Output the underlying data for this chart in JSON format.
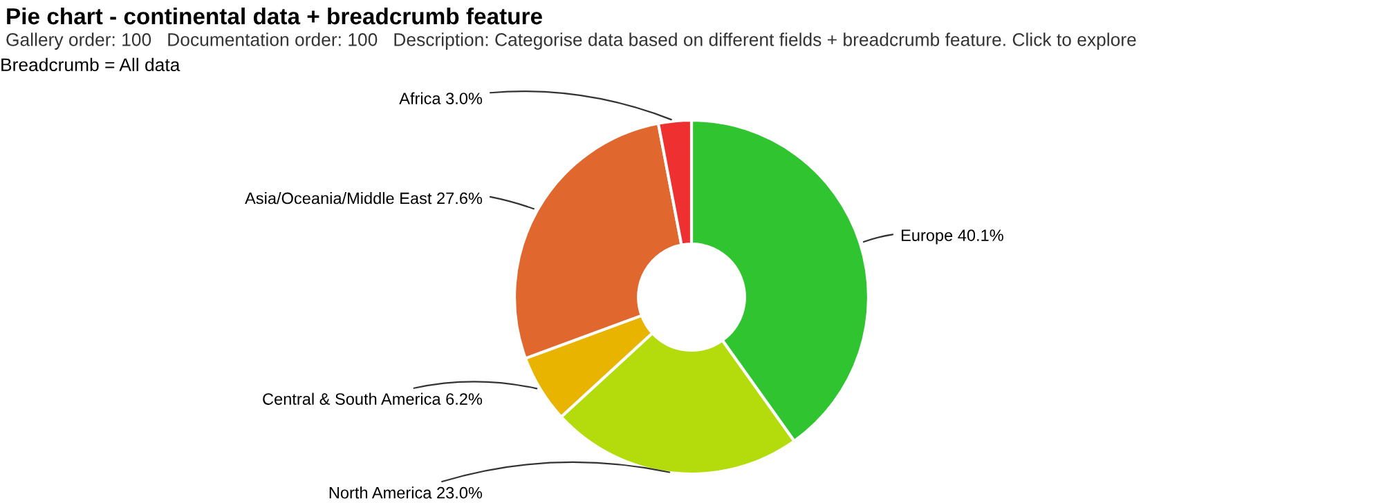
{
  "chart_data": {
    "type": "donut",
    "title": "Pie chart - continental data + breadcrumb feature",
    "subtitle": "Gallery order: 100   Documentation order: 100   Description: Categorise data based on different fields + breadcrumb feature. Click to explore",
    "annotations": [
      "Breadcrumb = All data"
    ],
    "categories": [
      "Europe",
      "North America",
      "Central & South America",
      "Asia/Oceania/Middle East",
      "Africa"
    ],
    "values": [
      40.1,
      23.0,
      6.2,
      27.6,
      3.0
    ],
    "value_labels": [
      "40.1%",
      "23.0%",
      "6.2%",
      "27.6%",
      "3.0%"
    ],
    "colors": [
      "#30c430",
      "#b4dc0c",
      "#e8b400",
      "#e0682e",
      "#ee3030"
    ],
    "legend": false
  }
}
